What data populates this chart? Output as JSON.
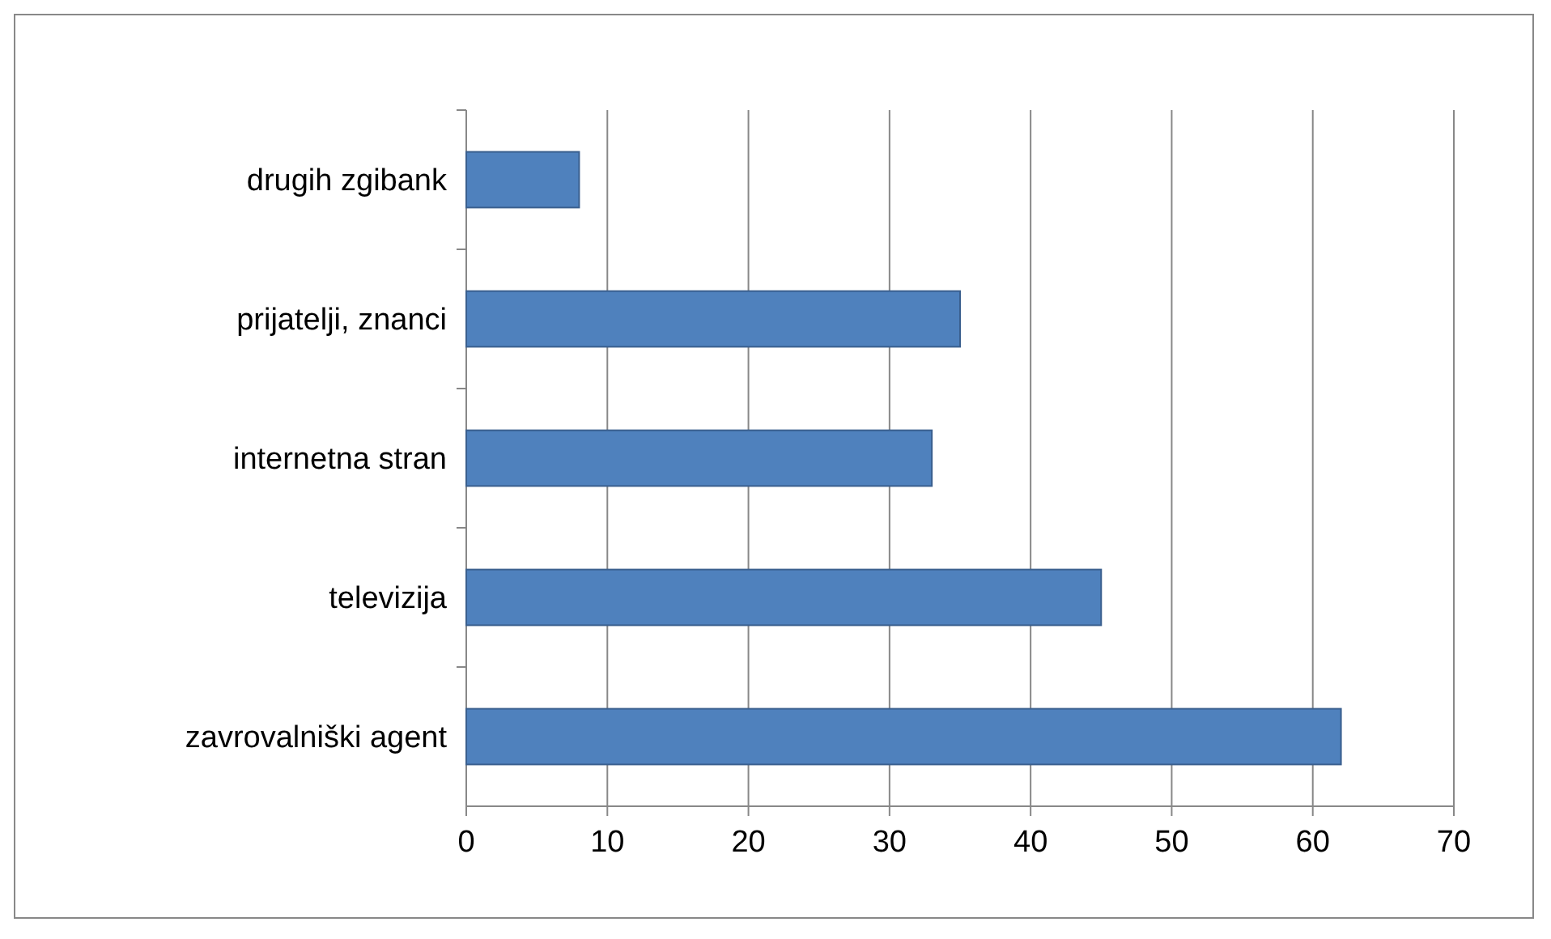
{
  "chart_data": {
    "type": "bar",
    "orientation": "horizontal",
    "categories": [
      "drugih zgibank",
      "prijatelji, znanci",
      "internetna stran",
      "televizija",
      "zavrovalniški agent"
    ],
    "values": [
      8,
      35,
      33,
      45,
      62
    ],
    "color": "#4f81bd",
    "xlim": [
      0,
      70
    ],
    "xticks": [
      0,
      10,
      20,
      30,
      40,
      50,
      60,
      70
    ],
    "grid": "x"
  }
}
